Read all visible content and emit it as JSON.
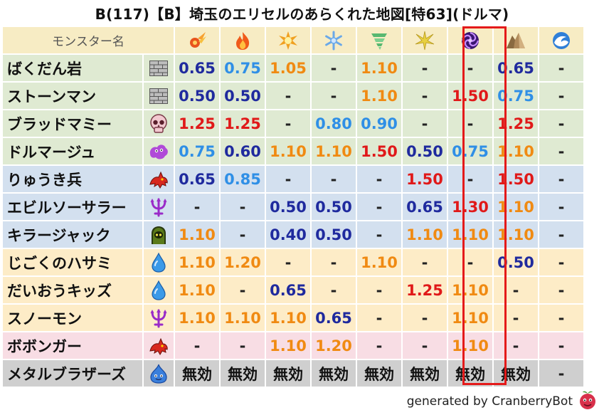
{
  "title": "B(117)【B】埼玉のエリセルのあらくれた地図[特63](ドルマ)",
  "header_label": "モンスター名",
  "elements": [
    {
      "icon": "fire-ball-icon",
      "color": "#e8541c"
    },
    {
      "icon": "flame-icon",
      "color": "#f05a1a"
    },
    {
      "icon": "explosion-icon",
      "color": "#f0a020"
    },
    {
      "icon": "ice-crystal-icon",
      "color": "#6aa8e8"
    },
    {
      "icon": "tornado-icon",
      "color": "#58b870"
    },
    {
      "icon": "lightning-burst-icon",
      "color": "#e8d040"
    },
    {
      "icon": "dark-vortex-icon",
      "color": "#7c3fc4"
    },
    {
      "icon": "rock-icon",
      "color": "#b08a5a"
    },
    {
      "icon": "water-wave-icon",
      "color": "#2f7fd8"
    }
  ],
  "rows": [
    {
      "name": "ばくだん岩",
      "family": "material",
      "bg": "g",
      "icon": "brick-icon",
      "values": [
        [
          "0.65",
          "navy"
        ],
        [
          "0.75",
          "blue"
        ],
        [
          "1.05",
          "orange"
        ],
        [
          "-",
          "dash"
        ],
        [
          "1.10",
          "orange"
        ],
        [
          "-",
          "dash"
        ],
        [
          "-",
          "dash"
        ],
        [
          "0.65",
          "navy"
        ],
        [
          "-",
          "dash"
        ]
      ]
    },
    {
      "name": "ストーンマン",
      "family": "material",
      "bg": "g",
      "icon": "brick-icon",
      "values": [
        [
          "0.50",
          "navy"
        ],
        [
          "0.50",
          "navy"
        ],
        [
          "-",
          "dash"
        ],
        [
          "-",
          "dash"
        ],
        [
          "1.10",
          "orange"
        ],
        [
          "-",
          "dash"
        ],
        [
          "1.50",
          "red"
        ],
        [
          "0.75",
          "blue"
        ],
        [
          "-",
          "dash"
        ]
      ]
    },
    {
      "name": "ブラッドマミー",
      "family": "zombie",
      "bg": "g",
      "icon": "skull-icon",
      "values": [
        [
          "1.25",
          "red"
        ],
        [
          "1.25",
          "red"
        ],
        [
          "-",
          "dash"
        ],
        [
          "0.80",
          "blue"
        ],
        [
          "0.90",
          "blue"
        ],
        [
          "-",
          "dash"
        ],
        [
          "-",
          "dash"
        ],
        [
          "1.25",
          "red"
        ],
        [
          "-",
          "dash"
        ]
      ]
    },
    {
      "name": "ドルマージュ",
      "family": "slime-gas",
      "bg": "g",
      "icon": "purple-blob-icon",
      "values": [
        [
          "0.75",
          "blue"
        ],
        [
          "0.60",
          "navy"
        ],
        [
          "1.10",
          "orange"
        ],
        [
          "1.10",
          "orange"
        ],
        [
          "1.50",
          "red"
        ],
        [
          "0.50",
          "navy"
        ],
        [
          "0.75",
          "blue"
        ],
        [
          "1.10",
          "orange"
        ],
        [
          "-",
          "dash"
        ]
      ]
    },
    {
      "name": "りゅうき兵",
      "family": "dragon",
      "bg": "b",
      "icon": "red-dragon-icon",
      "values": [
        [
          "0.65",
          "navy"
        ],
        [
          "0.85",
          "blue"
        ],
        [
          "-",
          "dash"
        ],
        [
          "-",
          "dash"
        ],
        [
          "-",
          "dash"
        ],
        [
          "1.50",
          "red"
        ],
        [
          "-",
          "dash"
        ],
        [
          "1.50",
          "red"
        ],
        [
          "-",
          "dash"
        ]
      ]
    },
    {
      "name": "エビルソーサラー",
      "family": "demon",
      "bg": "b",
      "icon": "trident-icon",
      "values": [
        [
          "-",
          "dash"
        ],
        [
          "-",
          "dash"
        ],
        [
          "0.50",
          "navy"
        ],
        [
          "0.50",
          "navy"
        ],
        [
          "-",
          "dash"
        ],
        [
          "0.65",
          "navy"
        ],
        [
          "1.30",
          "red"
        ],
        [
          "1.10",
          "orange"
        ],
        [
          "-",
          "dash"
        ]
      ]
    },
    {
      "name": "キラージャック",
      "family": "undead",
      "bg": "b",
      "icon": "green-ghost-icon",
      "values": [
        [
          "1.10",
          "orange"
        ],
        [
          "-",
          "dash"
        ],
        [
          "0.40",
          "navy"
        ],
        [
          "0.50",
          "navy"
        ],
        [
          "-",
          "dash"
        ],
        [
          "1.10",
          "orange"
        ],
        [
          "1.10",
          "orange"
        ],
        [
          "1.10",
          "orange"
        ],
        [
          "-",
          "dash"
        ]
      ]
    },
    {
      "name": "じごくのハサミ",
      "family": "water",
      "bg": "y",
      "icon": "water-drop-icon",
      "values": [
        [
          "1.10",
          "orange"
        ],
        [
          "1.20",
          "orange"
        ],
        [
          "-",
          "dash"
        ],
        [
          "-",
          "dash"
        ],
        [
          "1.10",
          "orange"
        ],
        [
          "-",
          "dash"
        ],
        [
          "-",
          "dash"
        ],
        [
          "0.50",
          "navy"
        ],
        [
          "-",
          "dash"
        ]
      ]
    },
    {
      "name": "だいおうキッズ",
      "family": "water",
      "bg": "y",
      "icon": "water-drop-icon",
      "values": [
        [
          "1.10",
          "orange"
        ],
        [
          "-",
          "dash"
        ],
        [
          "0.65",
          "navy"
        ],
        [
          "-",
          "dash"
        ],
        [
          "-",
          "dash"
        ],
        [
          "1.25",
          "red"
        ],
        [
          "1.10",
          "orange"
        ],
        [
          "-",
          "dash"
        ],
        [
          "-",
          "dash"
        ]
      ]
    },
    {
      "name": "スノーモン",
      "family": "demon",
      "bg": "y",
      "icon": "trident-icon",
      "values": [
        [
          "1.10",
          "orange"
        ],
        [
          "1.10",
          "orange"
        ],
        [
          "1.10",
          "orange"
        ],
        [
          "0.65",
          "navy"
        ],
        [
          "-",
          "dash"
        ],
        [
          "-",
          "dash"
        ],
        [
          "1.10",
          "orange"
        ],
        [
          "-",
          "dash"
        ],
        [
          "-",
          "dash"
        ]
      ]
    },
    {
      "name": "ボボンガー",
      "family": "dragon",
      "bg": "p",
      "icon": "red-dragon-icon",
      "values": [
        [
          "-",
          "dash"
        ],
        [
          "-",
          "dash"
        ],
        [
          "1.10",
          "orange"
        ],
        [
          "1.20",
          "orange"
        ],
        [
          "-",
          "dash"
        ],
        [
          "-",
          "dash"
        ],
        [
          "1.10",
          "orange"
        ],
        [
          "-",
          "dash"
        ],
        [
          "-",
          "dash"
        ]
      ]
    },
    {
      "name": "メタルブラザーズ",
      "family": "slime",
      "bg": "s",
      "icon": "blue-slime-icon",
      "values": [
        [
          "無効",
          "mu"
        ],
        [
          "無効",
          "mu"
        ],
        [
          "無効",
          "mu"
        ],
        [
          "無効",
          "mu"
        ],
        [
          "無効",
          "mu"
        ],
        [
          "無効",
          "mu"
        ],
        [
          "無効",
          "mu"
        ],
        [
          "無効",
          "mu"
        ],
        [
          "-",
          "dash"
        ]
      ]
    }
  ],
  "highlight_column": 6,
  "highlight_color": "#e41a1a",
  "footer_text": "generated by CranberryBot",
  "footer_logo": "cranberry-logo-icon",
  "value_colors": {
    "navy": "#1f2a9e",
    "blue": "#2f8fe6",
    "orange": "#f08a12",
    "red": "#e01919",
    "dash": "#222222",
    "mu": "#111111"
  }
}
